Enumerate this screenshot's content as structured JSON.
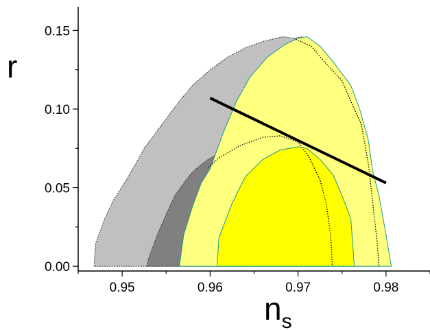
{
  "chart_data": {
    "type": "area",
    "xlabel": "n",
    "xlabel_sub": "s",
    "ylabel": "r",
    "xlim": [
      0.945,
      0.985
    ],
    "ylim": [
      -0.003,
      0.165
    ],
    "x_ticks": [
      "0.95",
      "0.96",
      "0.97",
      "0.98"
    ],
    "y_ticks": [
      "0.00",
      "0.05",
      "0.10",
      "0.15"
    ],
    "grid": false,
    "legend": "none",
    "regions": [
      {
        "fill": "#c0c0c0",
        "stroke": "#333333",
        "dashed": true,
        "points": [
          [
            0.9468,
            0
          ],
          [
            0.947,
            0.015
          ],
          [
            0.948,
            0.03
          ],
          [
            0.949,
            0.042
          ],
          [
            0.9505,
            0.055
          ],
          [
            0.9525,
            0.075
          ],
          [
            0.9545,
            0.09
          ],
          [
            0.9565,
            0.105
          ],
          [
            0.958,
            0.115
          ],
          [
            0.96,
            0.125
          ],
          [
            0.962,
            0.133
          ],
          [
            0.964,
            0.139
          ],
          [
            0.966,
            0.143
          ],
          [
            0.9683,
            0.146
          ],
          [
            0.9695,
            0.145
          ],
          [
            0.9705,
            0.146
          ],
          [
            0.972,
            0.14
          ],
          [
            0.9735,
            0.13
          ],
          [
            0.975,
            0.118
          ],
          [
            0.976,
            0.105
          ],
          [
            0.977,
            0.09
          ],
          [
            0.978,
            0.065
          ],
          [
            0.9785,
            0.04
          ],
          [
            0.979,
            0.015
          ],
          [
            0.9792,
            0
          ]
        ]
      },
      {
        "fill": "#808080",
        "stroke": "#333333",
        "dashed": true,
        "points": [
          [
            0.9528,
            0
          ],
          [
            0.953,
            0.005
          ],
          [
            0.954,
            0.02
          ],
          [
            0.955,
            0.033
          ],
          [
            0.956,
            0.045
          ],
          [
            0.957,
            0.053
          ],
          [
            0.958,
            0.06
          ],
          [
            0.9595,
            0.067
          ],
          [
            0.961,
            0.072
          ],
          [
            0.963,
            0.077
          ],
          [
            0.9655,
            0.082
          ],
          [
            0.9675,
            0.083
          ],
          [
            0.969,
            0.08
          ],
          [
            0.97,
            0.076
          ],
          [
            0.971,
            0.07
          ],
          [
            0.9725,
            0.055
          ],
          [
            0.973,
            0.04
          ],
          [
            0.9735,
            0.02
          ],
          [
            0.9737,
            0
          ]
        ]
      },
      {
        "fill": "#ffff80",
        "stroke": "#1a9a8a",
        "dashed": false,
        "points": [
          [
            0.9565,
            0
          ],
          [
            0.957,
            0.02
          ],
          [
            0.958,
            0.038
          ],
          [
            0.959,
            0.053
          ],
          [
            0.96,
            0.062
          ],
          [
            0.9615,
            0.085
          ],
          [
            0.963,
            0.105
          ],
          [
            0.9645,
            0.12
          ],
          [
            0.9665,
            0.133
          ],
          [
            0.9685,
            0.141
          ],
          [
            0.97,
            0.145
          ],
          [
            0.971,
            0.146
          ],
          [
            0.9725,
            0.14
          ],
          [
            0.974,
            0.13
          ],
          [
            0.976,
            0.115
          ],
          [
            0.977,
            0.1
          ],
          [
            0.978,
            0.08
          ],
          [
            0.9785,
            0.06
          ],
          [
            0.9792,
            0.045
          ],
          [
            0.98,
            0.02
          ],
          [
            0.9806,
            0
          ]
        ]
      },
      {
        "fill": "#ffff00",
        "stroke": "#1a9a8a",
        "dashed": false,
        "points": [
          [
            0.9608,
            0
          ],
          [
            0.961,
            0.018
          ],
          [
            0.9625,
            0.04
          ],
          [
            0.964,
            0.057
          ],
          [
            0.966,
            0.068
          ],
          [
            0.968,
            0.074
          ],
          [
            0.97,
            0.076
          ],
          [
            0.971,
            0.075
          ],
          [
            0.9725,
            0.068
          ],
          [
            0.974,
            0.058
          ],
          [
            0.975,
            0.045
          ],
          [
            0.976,
            0.03
          ],
          [
            0.9762,
            0.015
          ],
          [
            0.9764,
            0
          ]
        ]
      }
    ],
    "dotted_contours": [
      {
        "stroke": "#000000",
        "points": [
          [
            0.9598,
            0.063
          ],
          [
            0.961,
            0.069
          ],
          [
            0.9635,
            0.077
          ],
          [
            0.966,
            0.082
          ],
          [
            0.968,
            0.083
          ],
          [
            0.97,
            0.079
          ],
          [
            0.9712,
            0.07
          ],
          [
            0.9725,
            0.055
          ],
          [
            0.9732,
            0.04
          ],
          [
            0.9737,
            0.02
          ],
          [
            0.9739,
            0
          ]
        ]
      },
      {
        "stroke": "#000000",
        "points": [
          [
            0.9695,
            0.145
          ],
          [
            0.9715,
            0.14
          ],
          [
            0.973,
            0.13
          ],
          [
            0.975,
            0.118
          ],
          [
            0.976,
            0.105
          ],
          [
            0.9772,
            0.09
          ],
          [
            0.978,
            0.065
          ],
          [
            0.9785,
            0.04
          ],
          [
            0.979,
            0.015
          ],
          [
            0.9792,
            0
          ]
        ]
      }
    ],
    "line": {
      "stroke": "#000000",
      "points": [
        [
          0.96,
          0.107
        ],
        [
          0.98,
          0.053
        ]
      ]
    }
  }
}
